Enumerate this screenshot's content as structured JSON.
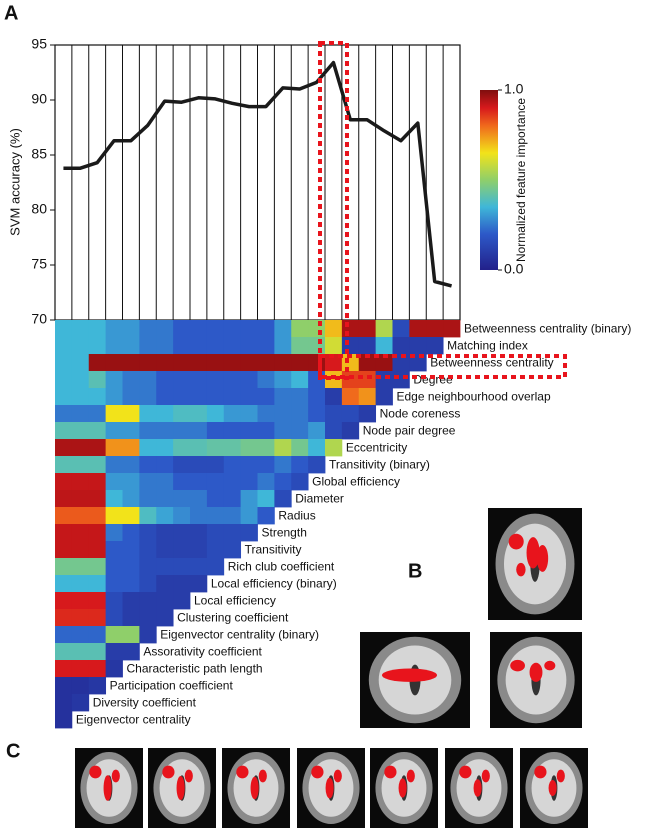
{
  "panel_labels": [
    "A",
    "B",
    "C"
  ],
  "chart_data": [
    {
      "type": "line",
      "y_label": "SVM accuracy (%)",
      "color": "#1a1a1a",
      "ylim": [
        70,
        95
      ],
      "yticks": [
        70,
        75,
        80,
        85,
        90,
        95
      ],
      "values": [
        83.8,
        83.8,
        84.3,
        86.3,
        86.3,
        87.7,
        89.9,
        89.8,
        90.2,
        90.1,
        89.7,
        89.4,
        89.4,
        91.1,
        91.0,
        91.6,
        93.4,
        88.2,
        88.2,
        87.2,
        86.3,
        87.9,
        73.5,
        73.1
      ]
    },
    {
      "type": "heatmap",
      "colorbar_label": "Normalized feature importance",
      "clim": [
        0,
        1
      ],
      "cticks": [
        {
          "value": 1,
          "label": "1.0"
        },
        {
          "value": 0,
          "label": "0.0"
        }
      ],
      "rows": [
        {
          "label": "Betweenness centrality (binary)",
          "values": [
            0.35,
            0.35,
            0.35,
            0.3,
            0.3,
            0.25,
            0.25,
            0.2,
            0.2,
            0.2,
            0.2,
            0.2,
            0.2,
            0.3,
            0.5,
            0.5,
            0.7,
            0.95,
            0.95,
            0.55,
            0.15,
            0.95,
            0.95,
            0.95
          ]
        },
        {
          "label": "Matching index",
          "values": [
            0.35,
            0.35,
            0.35,
            0.3,
            0.3,
            0.25,
            0.25,
            0.2,
            0.2,
            0.2,
            0.2,
            0.2,
            0.2,
            0.3,
            0.45,
            0.45,
            0.6,
            0.1,
            0.1,
            0.35,
            0.1,
            0.1,
            0.1
          ]
        },
        {
          "label": "Betweenness centrality",
          "values": [
            0.35,
            0.35,
            0.97,
            0.97,
            0.97,
            0.97,
            0.97,
            0.97,
            0.97,
            0.97,
            0.97,
            0.97,
            0.97,
            0.97,
            0.97,
            0.97,
            0.9,
            0.7,
            0.97,
            0.97,
            0.1,
            0.1
          ]
        },
        {
          "label": "Degree",
          "values": [
            0.35,
            0.35,
            0.4,
            0.3,
            0.25,
            0.25,
            0.2,
            0.2,
            0.2,
            0.2,
            0.2,
            0.2,
            0.25,
            0.3,
            0.35,
            0.2,
            0.7,
            0.85,
            0.85,
            0.1,
            0.1
          ]
        },
        {
          "label": "Edge neighbourhood overlap",
          "values": [
            0.35,
            0.35,
            0.35,
            0.3,
            0.25,
            0.25,
            0.2,
            0.2,
            0.2,
            0.2,
            0.2,
            0.2,
            0.2,
            0.25,
            0.25,
            0.2,
            0.1,
            0.8,
            0.75,
            0.1
          ]
        },
        {
          "label": "Node coreness",
          "values": [
            0.25,
            0.25,
            0.25,
            0.65,
            0.65,
            0.35,
            0.35,
            0.38,
            0.38,
            0.35,
            0.3,
            0.3,
            0.25,
            0.25,
            0.25,
            0.2,
            0.15,
            0.15,
            0.1
          ]
        },
        {
          "label": "Node pair degree",
          "values": [
            0.4,
            0.4,
            0.4,
            0.3,
            0.3,
            0.25,
            0.25,
            0.25,
            0.25,
            0.2,
            0.2,
            0.2,
            0.2,
            0.25,
            0.25,
            0.3,
            0.15,
            0.1
          ]
        },
        {
          "label": "Eccentricity",
          "values": [
            0.95,
            0.95,
            0.95,
            0.75,
            0.75,
            0.35,
            0.35,
            0.4,
            0.4,
            0.42,
            0.42,
            0.45,
            0.45,
            0.55,
            0.45,
            0.35,
            0.55
          ]
        },
        {
          "label": "Transitivity (binary)",
          "values": [
            0.4,
            0.4,
            0.4,
            0.25,
            0.25,
            0.2,
            0.2,
            0.15,
            0.15,
            0.15,
            0.2,
            0.2,
            0.2,
            0.25,
            0.2,
            0.15
          ]
        },
        {
          "label": "Global efficiency",
          "values": [
            0.92,
            0.92,
            0.92,
            0.3,
            0.3,
            0.25,
            0.25,
            0.2,
            0.2,
            0.2,
            0.2,
            0.2,
            0.25,
            0.2,
            0.15
          ]
        },
        {
          "label": "Diameter",
          "values": [
            0.93,
            0.93,
            0.93,
            0.35,
            0.3,
            0.25,
            0.25,
            0.25,
            0.25,
            0.2,
            0.2,
            0.3,
            0.35,
            0.15
          ]
        },
        {
          "label": "Radius",
          "values": [
            0.82,
            0.82,
            0.82,
            0.65,
            0.65,
            0.38,
            0.32,
            0.28,
            0.25,
            0.25,
            0.25,
            0.3,
            0.2
          ]
        },
        {
          "label": "Strength",
          "values": [
            0.92,
            0.92,
            0.92,
            0.25,
            0.2,
            0.15,
            0.12,
            0.12,
            0.12,
            0.15,
            0.15,
            0.15
          ]
        },
        {
          "label": "Transitivity",
          "values": [
            0.92,
            0.92,
            0.92,
            0.2,
            0.2,
            0.15,
            0.12,
            0.12,
            0.12,
            0.15,
            0.15
          ]
        },
        {
          "label": "Rich club coefficient",
          "values": [
            0.45,
            0.45,
            0.45,
            0.2,
            0.2,
            0.15,
            0.15,
            0.15,
            0.15,
            0.15
          ]
        },
        {
          "label": "Local efficiency (binary)",
          "values": [
            0.35,
            0.35,
            0.35,
            0.2,
            0.2,
            0.15,
            0.1,
            0.1,
            0.1
          ]
        },
        {
          "label": "Local efficiency",
          "values": [
            0.9,
            0.9,
            0.9,
            0.15,
            0.1,
            0.1,
            0.1,
            0.1
          ]
        },
        {
          "label": "Clustering coefficient",
          "values": [
            0.88,
            0.88,
            0.88,
            0.15,
            0.1,
            0.1,
            0.1
          ]
        },
        {
          "label": "Eigenvector centrality (binary)",
          "values": [
            0.22,
            0.22,
            0.22,
            0.5,
            0.5,
            0.1
          ]
        },
        {
          "label": "Assorativity coefficient",
          "values": [
            0.4,
            0.4,
            0.4,
            0.1,
            0.1
          ]
        },
        {
          "label": "Characteristic path length",
          "values": [
            0.9,
            0.9,
            0.9,
            0.08
          ]
        },
        {
          "label": "Participation coefficient",
          "values": [
            0.06,
            0.06,
            0.08
          ]
        },
        {
          "label": "Diversity coefficient",
          "values": [
            0.06,
            0.08
          ]
        },
        {
          "label": "Eigenvector centrality",
          "values": [
            0.06
          ]
        }
      ]
    }
  ]
}
